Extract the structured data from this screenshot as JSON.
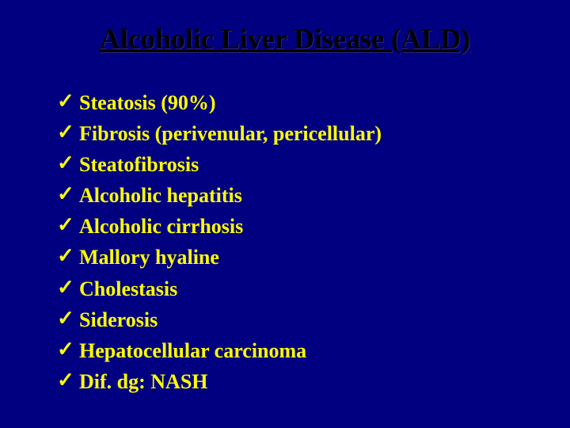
{
  "background_color": "#000080",
  "title_color": "#000000",
  "bullet_color": "#ffff00",
  "text_color": "#ffff00",
  "title_fontsize": 36,
  "item_fontsize": 26,
  "font_family": "Times New Roman",
  "check_glyph": "✓",
  "title": "Alcoholic Liver Disease (ALD)",
  "items": [
    "Steatosis (90%)",
    "Fibrosis (perivenular, pericellular)",
    "Steatofibrosis",
    "Alcoholic hepatitis",
    "Alcoholic cirrhosis",
    "Mallory hyaline",
    "Cholestasis",
    "Siderosis",
    "Hepatocellular carcinoma",
    "Dif. dg: NASH"
  ]
}
